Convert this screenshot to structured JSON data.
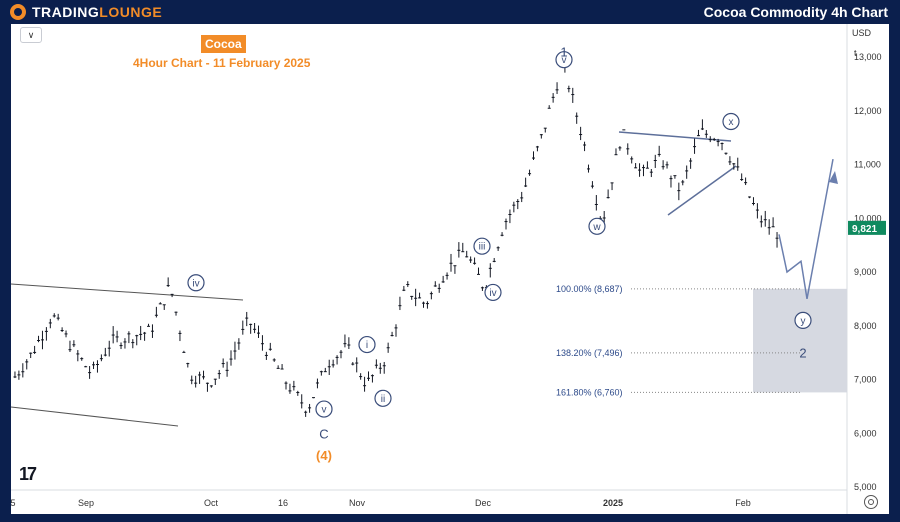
{
  "header": {
    "logo_text_1": "TRADING",
    "logo_text_2": "LOUNGE",
    "title": "Cocoa Commodity 4h Chart"
  },
  "toolbar": {
    "currency": "USD",
    "currency_suffix": "t"
  },
  "chart_data": {
    "type": "line",
    "title": "Cocoa",
    "subtitle": "4Hour Chart - 11 February 2025",
    "x_ticks": [
      "5",
      "Sep",
      "Oct",
      "16",
      "Nov",
      "Dec",
      "2025",
      "Feb"
    ],
    "y_ticks": [
      "13,000",
      "12,000",
      "11,000",
      "10,000",
      "9,000",
      "8,000",
      "7,000",
      "6,000",
      "5,000"
    ],
    "ylim": [
      5000,
      13000
    ],
    "last_price_label": "9,821",
    "series": [
      {
        "values": [
          7000,
          7500,
          8200,
          7600,
          7100,
          7700,
          7800,
          7900,
          8750,
          7100,
          6950,
          7300,
          8100,
          7500,
          6900,
          6450,
          7300,
          7600,
          6900,
          7400,
          8700,
          8400,
          9000,
          9400,
          8700,
          9900,
          10500,
          11600,
          12900,
          11500,
          9900,
          11600,
          10800,
          11100,
          10500,
          11600,
          11500,
          10800,
          10000,
          9700
        ]
      }
    ],
    "wave_labels": [
      {
        "label": "iv",
        "value": 8800
      },
      {
        "label": "i",
        "value": 7650
      },
      {
        "label": "ii",
        "value": 6650
      },
      {
        "label": "iii",
        "value": 9480
      },
      {
        "label": "iv",
        "value": 8620
      },
      {
        "label": "v",
        "value": 12950
      },
      {
        "label": "1",
        "value": 13100
      },
      {
        "label": "w",
        "value": 9850
      },
      {
        "label": "x",
        "value": 11800
      },
      {
        "label": "y",
        "value": 8100
      },
      {
        "label": "2",
        "value": 7500
      },
      {
        "label": "v",
        "value": 6450
      },
      {
        "label": "C",
        "value": 6000
      },
      {
        "label": "(4)",
        "value": 5600
      }
    ],
    "fib_levels": [
      {
        "label": "100.00% (8,687)",
        "value": 8687
      },
      {
        "label": "138.20% (7,496)",
        "value": 7496
      },
      {
        "label": "161.80% (6,760)",
        "value": 6760
      }
    ]
  }
}
